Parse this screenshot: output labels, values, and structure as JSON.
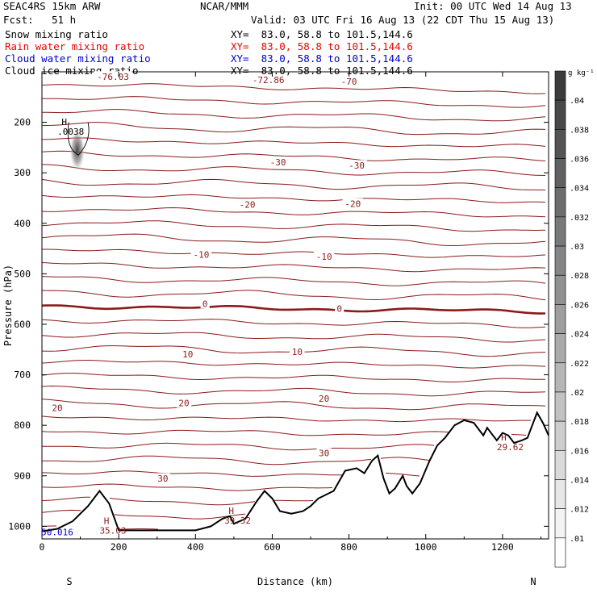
{
  "header": {
    "model": "SEAC4RS 15km ARW",
    "org": "NCAR/MMM",
    "init": "Init: 00 UTC Wed 14 Aug 13",
    "fcst_label": "Fcst:",
    "fcst_value": "51 h",
    "valid": "Valid: 03 UTC Fri 16 Aug 13 (22 CDT Thu 15 Aug 13)",
    "fields": [
      {
        "label": "Snow mixing ratio",
        "color": "#000000",
        "xy": "XY=  83.0, 58.8 to 101.5,144.6"
      },
      {
        "label": "Rain water mixing ratio",
        "color": "#ee0000",
        "xy": "XY=  83.0, 58.8 to 101.5,144.6"
      },
      {
        "label": "Cloud water mixing ratio",
        "color": "#0000cc",
        "xy": "XY=  83.0, 58.8 to 101.5,144.6"
      },
      {
        "label": "Cloud ice mixing ratio",
        "color": "#000000",
        "xy": "XY=  83.0, 58.8 to 101.5,144.6"
      }
    ]
  },
  "chart_data": {
    "type": "contour-cross-section",
    "xlabel": "Distance (km)",
    "ylabel": "Pressure (hPa)",
    "xlim": [
      0,
      1320
    ],
    "ylim": [
      1025,
      100
    ],
    "x_ticks": [
      "0",
      "200",
      "400",
      "600",
      "800",
      "1000",
      "1200"
    ],
    "y_ticks": [
      "200",
      "300",
      "400",
      "500",
      "600",
      "700",
      "800",
      "900",
      "1000"
    ],
    "end_labels": {
      "left": "S",
      "right": "N"
    },
    "contour_color": "#8b1a1a",
    "terrain_color": "#000000",
    "colorbar": {
      "unit": "g kg⁻¹",
      "ticks": [
        ".04",
        ".038",
        ".036",
        ".034",
        ".032",
        ".03",
        ".028",
        ".026",
        ".024",
        ".022",
        ".02",
        ".018",
        ".016",
        ".014",
        ".012",
        ".01"
      ]
    },
    "temperature_labels": [
      {
        "text": "-76.03",
        "x": 185,
        "p": 110
      },
      {
        "text": "-72.86",
        "x": 590,
        "p": 117
      },
      {
        "text": "-70",
        "x": 800,
        "p": 120
      },
      {
        "text": "-30",
        "x": 615,
        "p": 280
      },
      {
        "text": "-30",
        "x": 820,
        "p": 286
      },
      {
        "text": "-20",
        "x": 535,
        "p": 364
      },
      {
        "text": "-20",
        "x": 810,
        "p": 362
      },
      {
        "text": "-10",
        "x": 415,
        "p": 463
      },
      {
        "text": "-10",
        "x": 735,
        "p": 467
      },
      {
        "text": "0",
        "x": 425,
        "p": 560
      },
      {
        "text": "0",
        "x": 775,
        "p": 570
      },
      {
        "text": "10",
        "x": 380,
        "p": 660
      },
      {
        "text": "10",
        "x": 665,
        "p": 655
      },
      {
        "text": "20",
        "x": 40,
        "p": 766
      },
      {
        "text": "20",
        "x": 370,
        "p": 757
      },
      {
        "text": "20",
        "x": 735,
        "p": 748
      },
      {
        "text": "30",
        "x": 315,
        "p": 906
      },
      {
        "text": "30",
        "x": 735,
        "p": 856
      }
    ],
    "extrema_labels": [
      {
        "marker": "H",
        "value": ".0038",
        "x": 75,
        "p": 215,
        "color": "#000000"
      },
      {
        "marker": "H",
        "value": "35.03",
        "x": 185,
        "p": 1005,
        "color": "#8b1a1a"
      },
      {
        "marker": "H",
        "value": "39.32",
        "x": 510,
        "p": 985,
        "color": "#8b1a1a"
      },
      {
        "marker": "H",
        "value": "29.62",
        "x": 1220,
        "p": 840,
        "color": "#8b1a1a"
      },
      {
        "marker": "",
        "value": "50.016",
        "x": 40,
        "p": 1008,
        "color": "#0000cc"
      }
    ],
    "terrain": {
      "x": [
        0,
        40,
        80,
        120,
        150,
        175,
        200,
        250,
        300,
        350,
        400,
        440,
        470,
        490,
        500,
        530,
        560,
        580,
        600,
        620,
        650,
        680,
        700,
        720,
        760,
        790,
        820,
        840,
        860,
        875,
        890,
        905,
        920,
        940,
        950,
        965,
        985,
        1010,
        1030,
        1050,
        1075,
        1100,
        1125,
        1150,
        1160,
        1175,
        1185,
        1200,
        1215,
        1230,
        1250,
        1265,
        1290,
        1305,
        1320
      ],
      "p": [
        1010,
        1005,
        990,
        960,
        930,
        955,
        1008,
        1008,
        1008,
        1008,
        1008,
        1000,
        985,
        980,
        995,
        985,
        950,
        930,
        945,
        970,
        975,
        970,
        960,
        945,
        930,
        890,
        885,
        895,
        870,
        860,
        905,
        935,
        925,
        900,
        920,
        935,
        915,
        870,
        840,
        825,
        800,
        790,
        795,
        820,
        805,
        820,
        830,
        815,
        820,
        835,
        830,
        825,
        775,
        795,
        820
      ]
    }
  }
}
